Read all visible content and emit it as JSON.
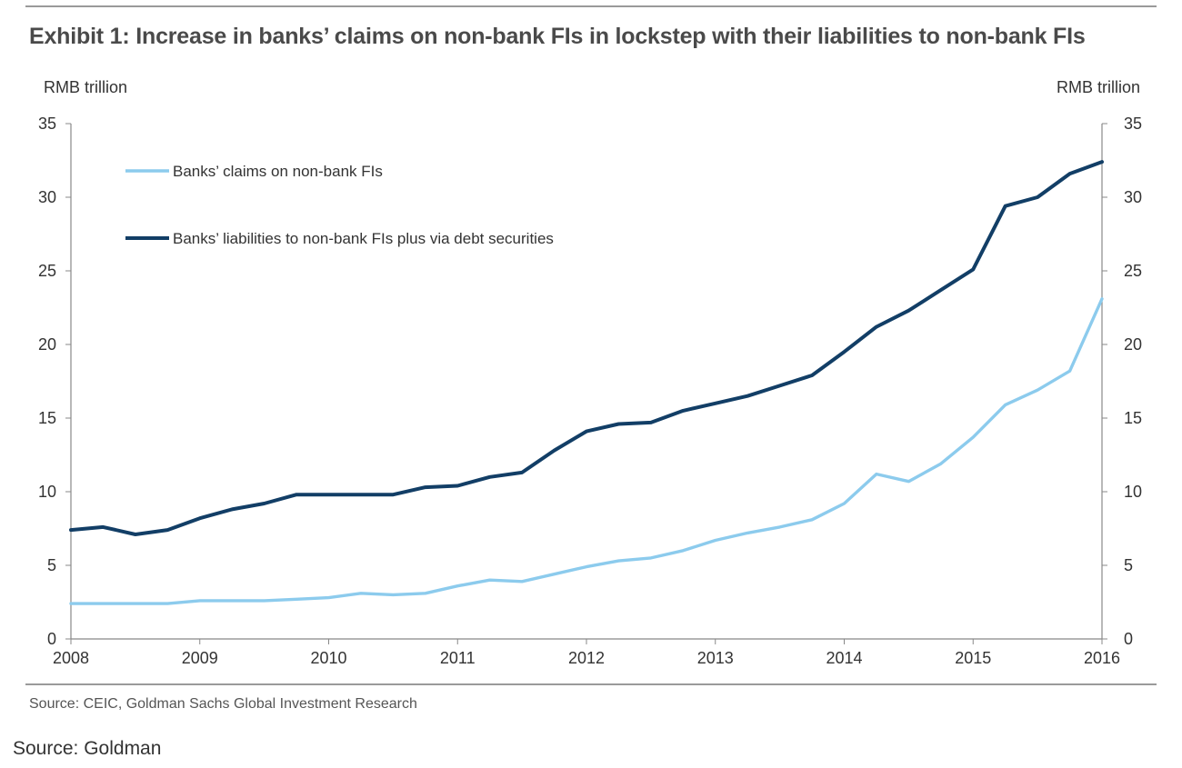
{
  "title": "Exhibit 1: Increase in banks’ claims on non-bank FIs in lockstep with their liabilities to non-bank FIs",
  "source_note": "Source: CEIC, Goldman Sachs Global Investment Research",
  "caption": "Source: Goldman",
  "chart_data": {
    "type": "line",
    "y_unit_left": "RMB trillion",
    "y_unit_right": "RMB trillion",
    "ylim": [
      0,
      35
    ],
    "y_ticks": [
      0,
      5,
      10,
      15,
      20,
      25,
      30,
      35
    ],
    "xlim": [
      2008,
      2016
    ],
    "x_ticks": [
      2008,
      2009,
      2010,
      2011,
      2012,
      2013,
      2014,
      2015,
      2016
    ],
    "grid": false,
    "legend_position": "top-left",
    "x": [
      2008.0,
      2008.25,
      2008.5,
      2008.75,
      2009.0,
      2009.25,
      2009.5,
      2009.75,
      2010.0,
      2010.25,
      2010.5,
      2010.75,
      2011.0,
      2011.25,
      2011.5,
      2011.75,
      2012.0,
      2012.25,
      2012.5,
      2012.75,
      2013.0,
      2013.25,
      2013.5,
      2013.75,
      2014.0,
      2014.25,
      2014.5,
      2014.75,
      2015.0,
      2015.25,
      2015.5,
      2015.75,
      2016.0
    ],
    "series": [
      {
        "name": "Banks’ claims on non-bank FIs",
        "color": "#8ccbed",
        "values": [
          2.4,
          2.4,
          2.4,
          2.4,
          2.6,
          2.6,
          2.6,
          2.7,
          2.8,
          3.1,
          3.0,
          3.1,
          3.6,
          4.0,
          3.9,
          4.4,
          4.9,
          5.3,
          5.5,
          6.0,
          6.7,
          7.2,
          7.6,
          8.1,
          9.2,
          11.2,
          10.7,
          11.9,
          13.7,
          15.9,
          16.9,
          18.2,
          23.1
        ]
      },
      {
        "name": "Banks’ liabilities to non-bank FIs plus via debt securities",
        "color": "#123e66",
        "values": [
          7.4,
          7.6,
          7.1,
          7.4,
          8.2,
          8.8,
          9.2,
          9.8,
          9.8,
          9.8,
          9.8,
          10.3,
          10.4,
          11.0,
          11.3,
          12.8,
          14.1,
          14.6,
          14.7,
          15.5,
          16.0,
          16.5,
          17.2,
          17.9,
          19.5,
          21.2,
          22.3,
          23.7,
          25.1,
          29.4,
          30.0,
          31.6,
          32.4
        ]
      }
    ]
  }
}
